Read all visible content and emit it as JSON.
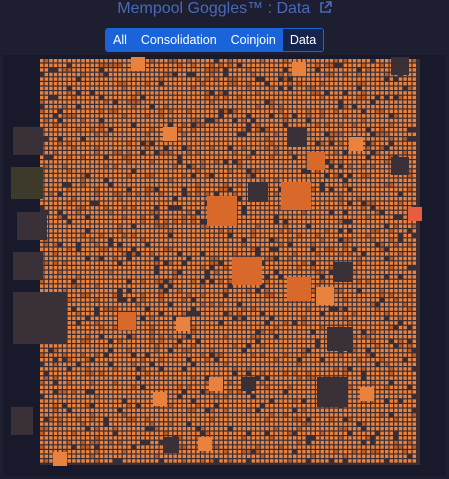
{
  "header": {
    "title": "Mempool Goggles™ : Data"
  },
  "filters": {
    "tabs": [
      {
        "label": "All"
      },
      {
        "label": "Consolidation"
      },
      {
        "label": "Coinjoin"
      },
      {
        "label": "Data"
      }
    ],
    "active_index": 3
  },
  "colors": {
    "background": "#1d1f31",
    "title": "#4a68b9",
    "tab": "#1a63d8",
    "tab_active": "#15244a",
    "highlight": "#e8823e",
    "highlight_dark": "#c25e22",
    "dim": "#35303d"
  },
  "icons": {
    "title_link": "external-link-icon"
  }
}
